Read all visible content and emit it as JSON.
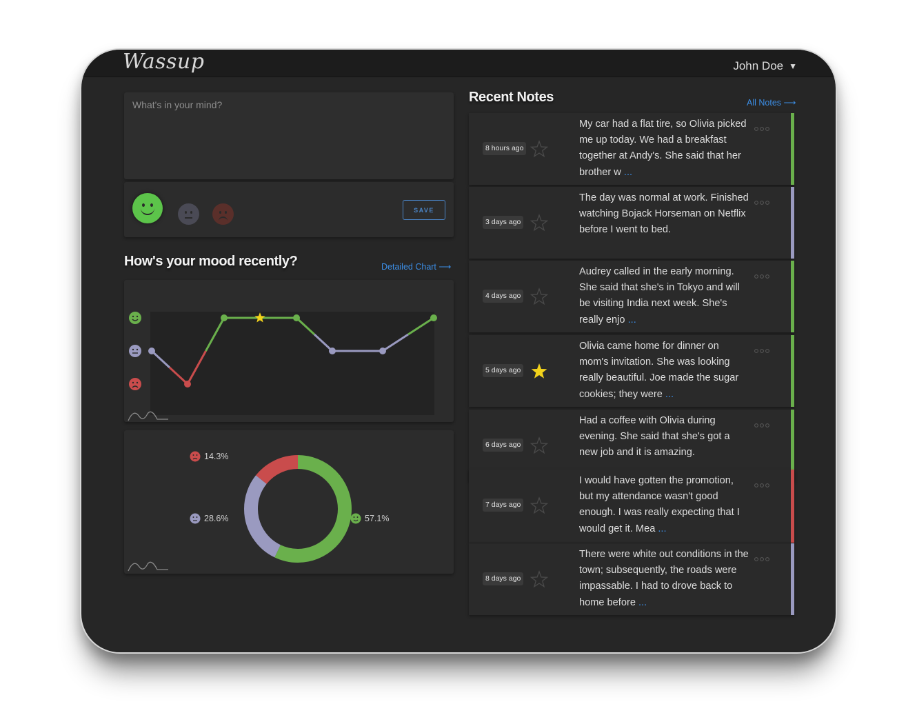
{
  "app": {
    "logo": "Wassup",
    "user_name": "John Doe"
  },
  "composer": {
    "placeholder": "What's in your mind?",
    "save_label": "SAVE"
  },
  "mood_section": {
    "title": "How's your mood recently?",
    "detail_link": "Detailed Chart ⟶"
  },
  "colors": {
    "happy": "#6ab04c",
    "neutral": "#9a9ac0",
    "sad": "#c94c4c",
    "accent": "#3c8ee6",
    "star": "#f2d21b"
  },
  "chart_data": [
    {
      "type": "line",
      "x": [
        1,
        2,
        3,
        4,
        5,
        6,
        7,
        8
      ],
      "y": [
        "neutral",
        "sad",
        "happy",
        "happy",
        "happy",
        "neutral",
        "neutral",
        "happy"
      ],
      "y_levels": [
        "happy",
        "neutral",
        "sad"
      ],
      "starred_point": 4
    },
    {
      "type": "pie",
      "slices": [
        {
          "label": "happy",
          "value": 57.1,
          "text": "57.1%"
        },
        {
          "label": "neutral",
          "value": 28.6,
          "text": "28.6%"
        },
        {
          "label": "sad",
          "value": 14.3,
          "text": "14.3%"
        }
      ]
    }
  ],
  "notes_section": {
    "title": "Recent Notes",
    "all_link": "All Notes ⟶"
  },
  "notes": [
    {
      "time": "8 hours ago",
      "text": "My car had a flat tire, so Olivia picked me up today. We had a breakfast together at Andy's. She said that her brother w",
      "more": " ...",
      "starred": false,
      "mood": "happy"
    },
    {
      "time": "3 days ago",
      "text": "The day was normal at work. Finished watching Bojack Horseman on Netflix before I went to bed.",
      "more": "",
      "starred": false,
      "mood": "neutral"
    },
    {
      "time": "4 days ago",
      "text": "Audrey called in the early morning. She said that she's in Tokyo and will be visiting India next week. She's really enjo",
      "more": " ...",
      "starred": false,
      "mood": "happy"
    },
    {
      "time": "5 days ago",
      "text": "Olivia came home for dinner on mom's invitation. She was looking really beautiful. Joe made the sugar cookies; they were",
      "more": " ...",
      "starred": true,
      "mood": "happy"
    },
    {
      "time": "6 days ago",
      "text": "Had a coffee with Olivia during evening. She said that she's got a new job and it is amazing.",
      "more": "",
      "starred": false,
      "mood": "happy"
    },
    {
      "time": "7 days ago",
      "text": "I would have gotten the promotion, but my attendance wasn't good enough. I was really expecting that I would get it. Mea",
      "more": " ...",
      "starred": false,
      "mood": "sad"
    },
    {
      "time": "8 days ago",
      "text": "There were white out conditions in the town; subsequently, the roads were impassable. I had to drove back to home before",
      "more": " ...",
      "starred": false,
      "mood": "neutral"
    }
  ]
}
